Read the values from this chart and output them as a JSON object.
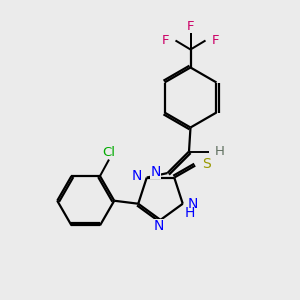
{
  "bg_color": "#ebebeb",
  "bond_color": "#000000",
  "atom_colors": {
    "N": "#0000ff",
    "S": "#999900",
    "Cl": "#00aa00",
    "F": "#cc0066",
    "H_gray": "#607060",
    "C": "#000000"
  },
  "figsize": [
    3.0,
    3.0
  ],
  "dpi": 100,
  "lw": 1.6,
  "fs": 9.5
}
